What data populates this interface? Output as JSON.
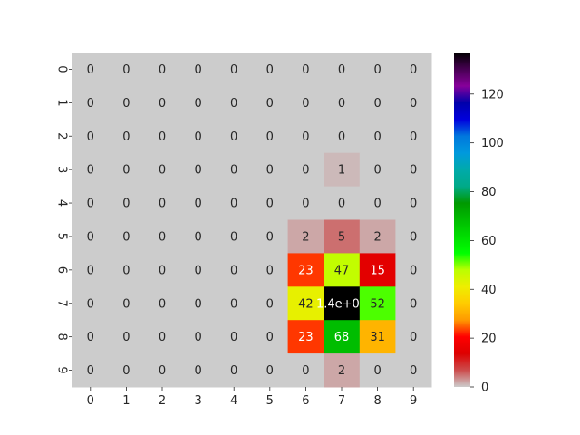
{
  "chart_data": {
    "type": "heatmap",
    "title": "",
    "xlabel": "",
    "ylabel": "",
    "x_categories": [
      "0",
      "1",
      "2",
      "3",
      "4",
      "5",
      "6",
      "7",
      "8",
      "9"
    ],
    "y_categories": [
      "0",
      "1",
      "2",
      "3",
      "4",
      "5",
      "6",
      "7",
      "8",
      "9"
    ],
    "values": [
      [
        0,
        0,
        0,
        0,
        0,
        0,
        0,
        0,
        0,
        0
      ],
      [
        0,
        0,
        0,
        0,
        0,
        0,
        0,
        0,
        0,
        0
      ],
      [
        0,
        0,
        0,
        0,
        0,
        0,
        0,
        0,
        0,
        0
      ],
      [
        0,
        0,
        0,
        0,
        0,
        0,
        0,
        1,
        0,
        0
      ],
      [
        0,
        0,
        0,
        0,
        0,
        0,
        0,
        0,
        0,
        0
      ],
      [
        0,
        0,
        0,
        0,
        0,
        0,
        2,
        5,
        2,
        0
      ],
      [
        0,
        0,
        0,
        0,
        0,
        0,
        23,
        47,
        15,
        0
      ],
      [
        0,
        0,
        0,
        0,
        0,
        0,
        42,
        137,
        52,
        0
      ],
      [
        0,
        0,
        0,
        0,
        0,
        0,
        23,
        68,
        31,
        0
      ],
      [
        0,
        0,
        0,
        0,
        0,
        0,
        0,
        2,
        0,
        0
      ]
    ],
    "cell_labels": [
      [
        "0",
        "0",
        "0",
        "0",
        "0",
        "0",
        "0",
        "0",
        "0",
        "0"
      ],
      [
        "0",
        "0",
        "0",
        "0",
        "0",
        "0",
        "0",
        "0",
        "0",
        "0"
      ],
      [
        "0",
        "0",
        "0",
        "0",
        "0",
        "0",
        "0",
        "0",
        "0",
        "0"
      ],
      [
        "0",
        "0",
        "0",
        "0",
        "0",
        "0",
        "0",
        "1",
        "0",
        "0"
      ],
      [
        "0",
        "0",
        "0",
        "0",
        "0",
        "0",
        "0",
        "0",
        "0",
        "0"
      ],
      [
        "0",
        "0",
        "0",
        "0",
        "0",
        "0",
        "2",
        "5",
        "2",
        "0"
      ],
      [
        "0",
        "0",
        "0",
        "0",
        "0",
        "0",
        "23",
        "47",
        "15",
        "0"
      ],
      [
        "0",
        "0",
        "0",
        "0",
        "0",
        "0",
        "42",
        "1.4e+02",
        "52",
        "0"
      ],
      [
        "0",
        "0",
        "0",
        "0",
        "0",
        "0",
        "23",
        "68",
        "31",
        "0"
      ],
      [
        "0",
        "0",
        "0",
        "0",
        "0",
        "0",
        "0",
        "2",
        "0",
        "0"
      ]
    ],
    "colorbar": {
      "range": [
        0,
        137
      ],
      "ticks": [
        0,
        20,
        40,
        60,
        80,
        100,
        120
      ],
      "colormap": "nipy_spectral_r"
    },
    "grid": false,
    "colorbar_placement": "right"
  }
}
